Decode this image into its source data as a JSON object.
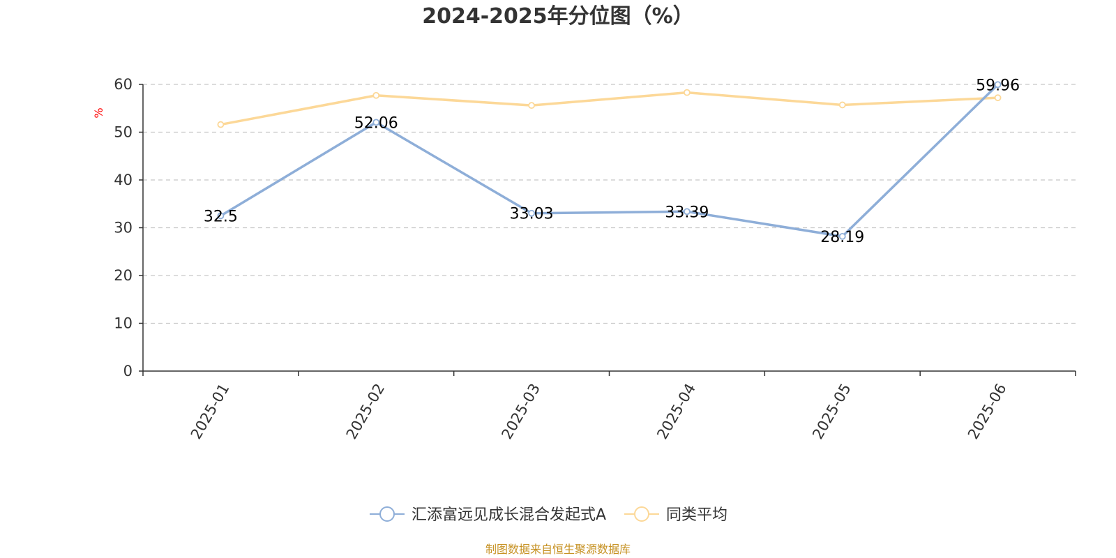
{
  "chart_data": {
    "type": "line",
    "title": "2024-2025年分位图（%）",
    "ylabel": "%",
    "xlabel": "",
    "categories": [
      "2025-01",
      "2025-02",
      "2025-03",
      "2025-04",
      "2025-05",
      "2025-06"
    ],
    "ylim": [
      0,
      60
    ],
    "yticks": [
      0,
      10,
      20,
      30,
      40,
      50,
      60
    ],
    "grid": true,
    "legend_position": "bottom-center",
    "series": [
      {
        "name": "汇添富远见成长混合发起式A",
        "values": [
          32.5,
          52.06,
          33.03,
          33.39,
          28.19,
          59.96
        ],
        "labels": [
          "32.5",
          "52.06",
          "33.03",
          "33.39",
          "28.19",
          "59.96"
        ],
        "color": "#8eaed8"
      },
      {
        "name": "同类平均",
        "values": [
          51.6,
          57.7,
          55.6,
          58.3,
          55.7,
          57.2
        ],
        "color": "#fcd898"
      }
    ],
    "source": "制图数据来自恒生聚源数据库"
  }
}
